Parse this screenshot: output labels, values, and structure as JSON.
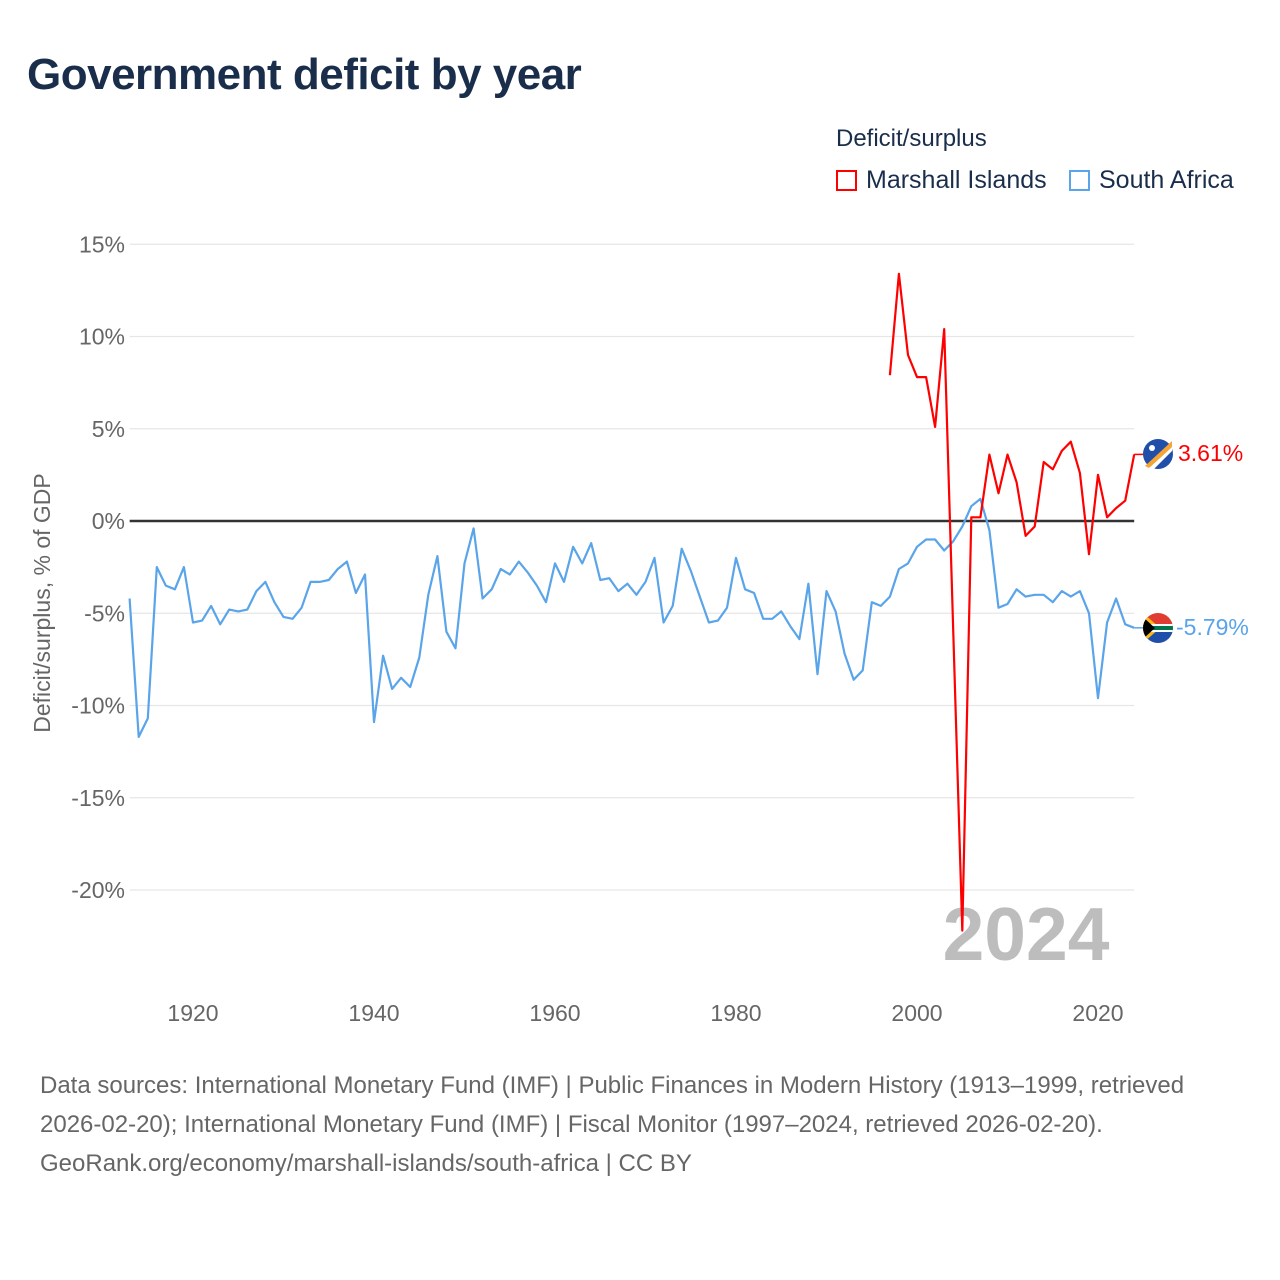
{
  "title": "Government deficit by year",
  "legend": {
    "title": "Deficit/surplus",
    "items": [
      {
        "name": "Marshall Islands",
        "color": "#ff0000"
      },
      {
        "name": "South Africa",
        "color": "#5aa4ea"
      }
    ]
  },
  "watermark_year": "2024",
  "end_labels": {
    "marshall": "3.61%",
    "south_africa": "-5.79%"
  },
  "footer": {
    "sources": "Data sources: International Monetary Fund (IMF) | Public Finances in Modern History (1913–1999, retrieved 2026-02-20); International Monetary Fund (IMF) | Fiscal Monitor (1997–2024, retrieved 2026-02-20).",
    "credit": "GeoRank.org/economy/marshall-islands/south-africa | CC BY"
  },
  "chart_data": {
    "type": "line",
    "title": "Government deficit by year",
    "xlabel": "",
    "ylabel": "Deficit/surplus, % of GDP",
    "xlim": [
      1913,
      2024
    ],
    "ylim": [
      -24,
      16
    ],
    "grid": true,
    "legend_position": "top-right",
    "yticks": [
      15,
      10,
      5,
      0,
      -5,
      -10,
      -15,
      -20
    ],
    "ytick_labels": [
      "15%",
      "10%",
      "5%",
      "0%",
      "-5%",
      "-10%",
      "-15%",
      "-20%"
    ],
    "xticks": [
      1920,
      1940,
      1960,
      1980,
      2000,
      2020
    ],
    "xtick_labels": [
      "1920",
      "1940",
      "1960",
      "1980",
      "2000",
      "2020"
    ],
    "series": [
      {
        "name": "Marshall Islands",
        "color": "#ff0000",
        "start_year": 1997,
        "values": [
          7.9,
          13.4,
          9.0,
          7.8,
          7.8,
          5.1,
          10.4,
          -5.9,
          -22.2,
          0.2,
          0.2,
          3.6,
          1.5,
          3.6,
          2.1,
          -0.8,
          -0.3,
          3.2,
          2.8,
          3.8,
          4.3,
          2.6,
          -1.8,
          2.5,
          0.2,
          0.7,
          1.1,
          3.61
        ]
      },
      {
        "name": "South Africa",
        "color": "#5aa4ea",
        "start_year": 1913,
        "values": [
          -4.2,
          -11.7,
          -10.7,
          -2.5,
          -3.5,
          -3.7,
          -2.5,
          -5.5,
          -5.4,
          -4.6,
          -5.6,
          -4.8,
          -4.9,
          -4.8,
          -3.8,
          -3.3,
          -4.4,
          -5.2,
          -5.3,
          -4.7,
          -3.3,
          -3.3,
          -3.2,
          -2.6,
          -2.2,
          -3.9,
          -2.9,
          -10.9,
          -7.3,
          -9.1,
          -8.5,
          -9.0,
          -7.4,
          -4.0,
          -1.9,
          -6.0,
          -6.9,
          -2.3,
          -0.4,
          -4.2,
          -3.7,
          -2.6,
          -2.9,
          -2.2,
          -2.8,
          -3.5,
          -4.4,
          -2.3,
          -3.3,
          -1.4,
          -2.3,
          -1.2,
          -3.2,
          -3.1,
          -3.8,
          -3.4,
          -4.0,
          -3.3,
          -2.0,
          -5.5,
          -4.6,
          -1.5,
          -2.7,
          -4.1,
          -5.5,
          -5.4,
          -4.7,
          -2.0,
          -3.7,
          -3.9,
          -5.3,
          -5.3,
          -4.9,
          -5.7,
          -6.4,
          -3.4,
          -8.3,
          -3.8,
          -4.9,
          -7.2,
          -8.6,
          -8.1,
          -4.4,
          -4.6,
          -4.1,
          -2.6,
          -2.3,
          -1.4,
          -1.0,
          -1.0,
          -1.6,
          -1.1,
          -0.3,
          0.8,
          1.2,
          -0.5,
          -4.7,
          -4.5,
          -3.7,
          -4.1,
          -4.0,
          -4.0,
          -4.4,
          -3.8,
          -4.1,
          -3.8,
          -5.0,
          -9.6,
          -5.5,
          -4.2,
          -5.6,
          -5.79
        ]
      }
    ]
  }
}
